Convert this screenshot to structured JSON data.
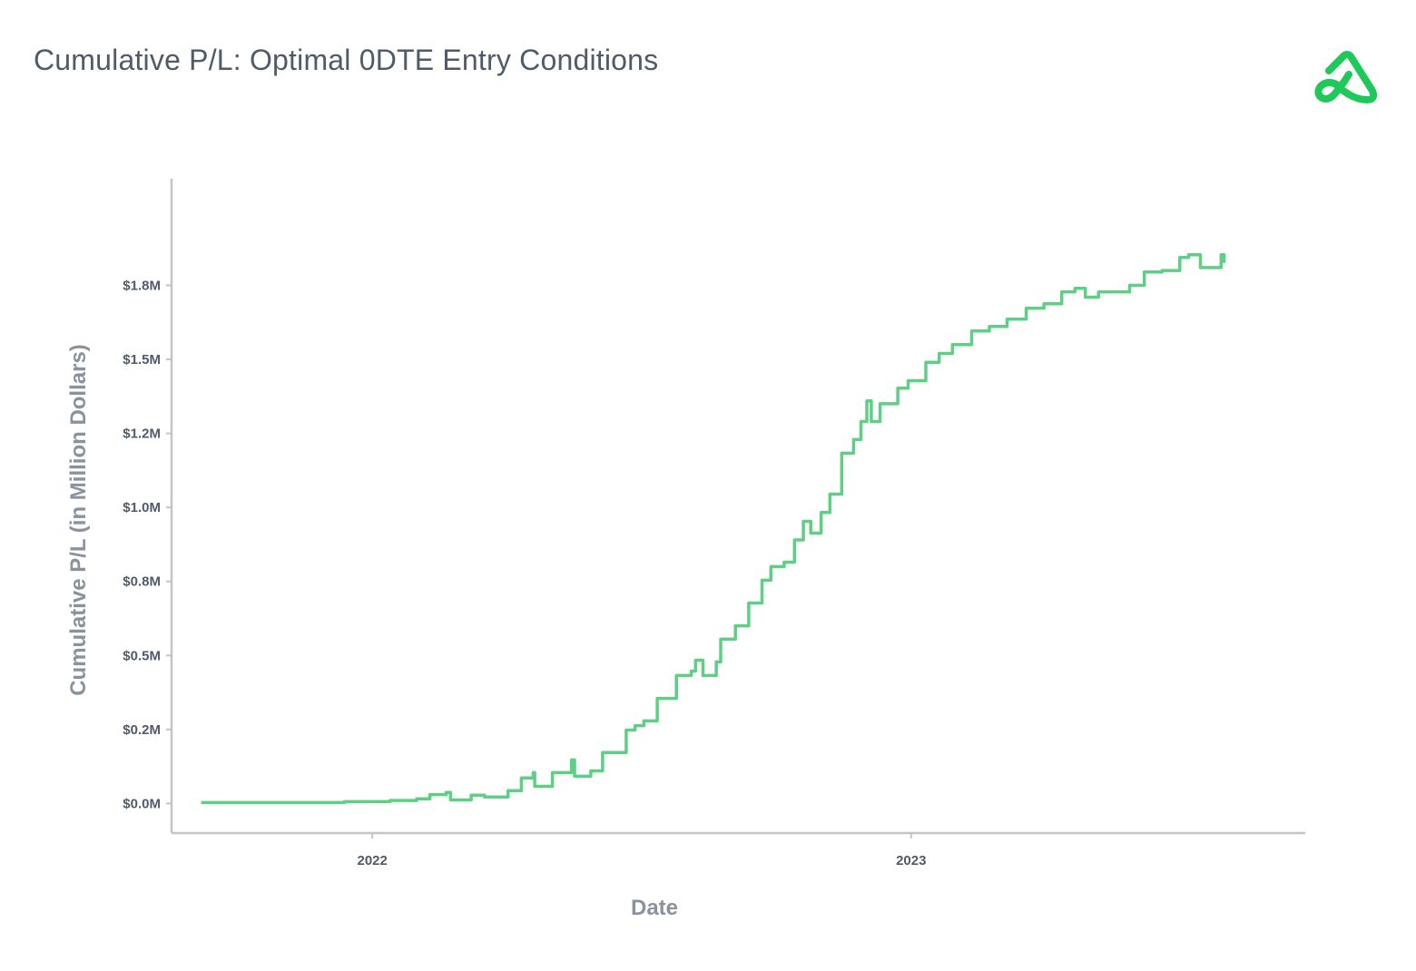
{
  "chart_data": {
    "type": "line",
    "title": "Cumulative P/L: Optimal 0DTE Entry Conditions",
    "xlabel": "Date",
    "ylabel": "Cumulative P/L (in Million Dollars)",
    "x_type": "date",
    "xlim": [
      "2021-08-18",
      "2023-09-25"
    ],
    "ylim": [
      -0.1,
      2.11
    ],
    "x_ticks": [
      {
        "value": "2022-01-01",
        "label": "2022"
      },
      {
        "value": "2023-01-01",
        "label": "2023"
      }
    ],
    "y_ticks": [
      {
        "value": 0,
        "label": "$0.0M"
      },
      {
        "value": 0.25,
        "label": "$0.2M"
      },
      {
        "value": 0.5,
        "label": "$0.5M"
      },
      {
        "value": 0.75,
        "label": "$0.8M"
      },
      {
        "value": 1.0,
        "label": "$1.0M"
      },
      {
        "value": 1.25,
        "label": "$1.2M"
      },
      {
        "value": 1.5,
        "label": "$1.5M"
      },
      {
        "value": 1.75,
        "label": "$1.8M"
      }
    ],
    "grid": false,
    "line_style": "step",
    "color": "#5fcf85",
    "series": [
      {
        "x": [
          "2021-09-07",
          "2021-12-13",
          "2022-01-13",
          "2022-01-31",
          "2022-02-09",
          "2022-02-20",
          "2022-02-23",
          "2022-03-09",
          "2022-03-18",
          "2022-04-03",
          "2022-04-12",
          "2022-04-20",
          "2022-04-21",
          "2022-05-03",
          "2022-05-16",
          "2022-05-18",
          "2022-05-29",
          "2022-06-06",
          "2022-06-22",
          "2022-06-28",
          "2022-07-04",
          "2022-07-13",
          "2022-07-26",
          "2022-08-05",
          "2022-08-08",
          "2022-08-13",
          "2022-08-22",
          "2022-08-25",
          "2022-09-04",
          "2022-09-13",
          "2022-09-22",
          "2022-09-28",
          "2022-10-07",
          "2022-10-14",
          "2022-10-20",
          "2022-10-25",
          "2022-11-01",
          "2022-11-07",
          "2022-11-15",
          "2022-11-23",
          "2022-11-28",
          "2022-12-02",
          "2022-12-05",
          "2022-12-11",
          "2022-12-23",
          "2022-12-30",
          "2023-01-11",
          "2023-01-20",
          "2023-01-29",
          "2023-02-11",
          "2023-02-23",
          "2023-03-07",
          "2023-03-20",
          "2023-04-01",
          "2023-04-13",
          "2023-04-22",
          "2023-04-29",
          "2023-05-08",
          "2023-05-20",
          "2023-05-29",
          "2023-06-08",
          "2023-06-20",
          "2023-07-02",
          "2023-07-08",
          "2023-07-16",
          "2023-07-30",
          "2023-08-01"
        ],
        "y": [
          0.003,
          0.006,
          0.01,
          0.016,
          0.03,
          0.037,
          0.012,
          0.028,
          0.022,
          0.043,
          0.086,
          0.104,
          0.058,
          0.104,
          0.147,
          0.092,
          0.11,
          0.172,
          0.248,
          0.263,
          0.279,
          0.355,
          0.432,
          0.447,
          0.484,
          0.432,
          0.478,
          0.555,
          0.6,
          0.677,
          0.754,
          0.8,
          0.815,
          0.89,
          0.953,
          0.913,
          0.983,
          1.045,
          1.183,
          1.229,
          1.29,
          1.36,
          1.29,
          1.35,
          1.403,
          1.428,
          1.49,
          1.52,
          1.55,
          1.596,
          1.611,
          1.636,
          1.673,
          1.688,
          1.728,
          1.74,
          1.71,
          1.728,
          1.728,
          1.75,
          1.795,
          1.8,
          1.844,
          1.853,
          1.81,
          1.853,
          1.826
        ]
      }
    ]
  },
  "logo": {
    "name": "brand-logo",
    "color": "#1ec95a"
  }
}
